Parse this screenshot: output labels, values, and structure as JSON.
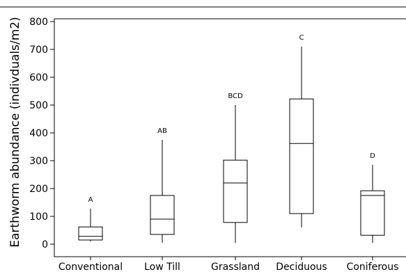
{
  "chart_data": {
    "type": "box",
    "title": "",
    "xlabel": "",
    "ylabel": "Earthworm abundance (indivduals/m2)",
    "ylim": [
      -30,
      820
    ],
    "yticks": [
      0,
      100,
      200,
      300,
      400,
      500,
      600,
      700,
      800
    ],
    "grid": false,
    "categories": [
      "Conventional",
      "Low Till",
      "Grassland",
      "Deciduous",
      "Coniferous"
    ],
    "boxes": [
      {
        "category": "Conventional",
        "min": 10,
        "q1": 15,
        "median": 28,
        "q3": 62,
        "max": 128,
        "letter": "A"
      },
      {
        "category": "Low Till",
        "min": 5,
        "q1": 35,
        "median": 90,
        "q3": 175,
        "max": 375,
        "letter": "AB"
      },
      {
        "category": "Grassland",
        "min": 5,
        "q1": 78,
        "median": 220,
        "q3": 302,
        "max": 500,
        "letter": "BCD"
      },
      {
        "category": "Deciduous",
        "min": 60,
        "q1": 110,
        "median": 362,
        "q3": 522,
        "max": 710,
        "letter": "C"
      },
      {
        "category": "Coniferous",
        "min": 5,
        "q1": 32,
        "median": 175,
        "q3": 192,
        "max": 285,
        "letter": "D"
      }
    ]
  }
}
